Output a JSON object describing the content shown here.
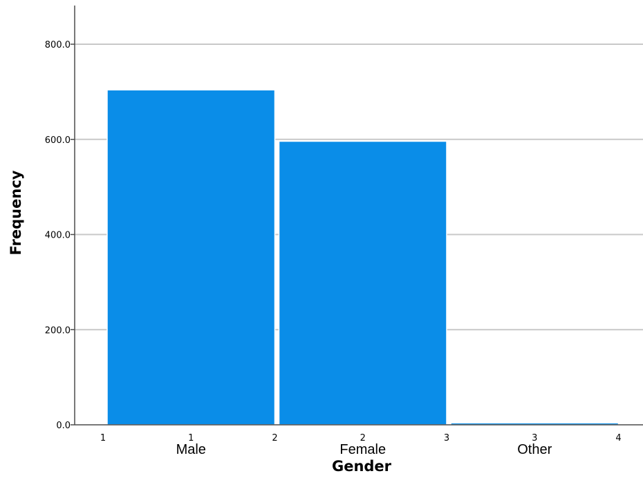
{
  "chart_data": {
    "type": "bar",
    "xlabel": "Gender",
    "ylabel": "Frequency",
    "ylim": [
      0,
      800
    ],
    "y_ticks": [
      "0.0",
      "200.0",
      "400.0",
      "600.0",
      "800.0"
    ],
    "y_tick_values": [
      0,
      200,
      400,
      600,
      800
    ],
    "x_edge_ticks": [
      "1",
      "2",
      "3",
      "4"
    ],
    "categories": [
      "Male",
      "Female",
      "Other"
    ],
    "category_codes": [
      "1",
      "2",
      "3"
    ],
    "values": [
      704,
      596,
      4
    ],
    "grid": true,
    "legend": "none",
    "bar_color": "#0a8de8",
    "bar_edge_color": "#ffffff"
  }
}
